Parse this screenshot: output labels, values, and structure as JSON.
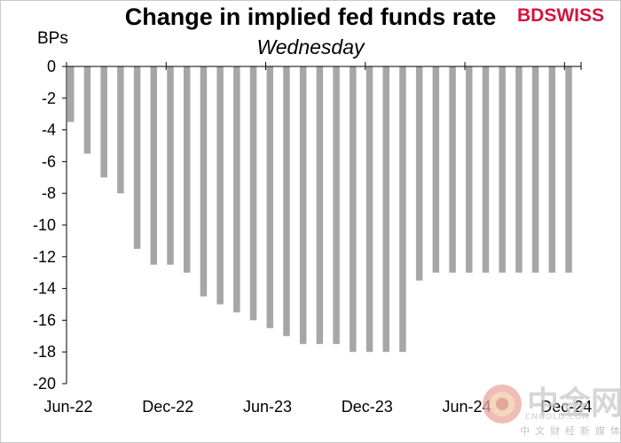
{
  "chart_data": {
    "type": "bar",
    "title": "Change in implied fed funds rate",
    "subtitle": "Wednesday",
    "ylabel": "BPs",
    "xlabel": "",
    "ylim": [
      -20,
      0
    ],
    "yticks": [
      0,
      -2,
      -4,
      -6,
      -8,
      -10,
      -12,
      -14,
      -16,
      -18,
      -20
    ],
    "xtick_labels": [
      "Jun-22",
      "Dec-22",
      "Jun-23",
      "Dec-23",
      "Jun-24",
      "Dec-24"
    ],
    "grid": false,
    "bar_color": "#a6a6a6",
    "values": [
      -3.5,
      -5.5,
      -7,
      -8,
      -11.5,
      -12.5,
      -12.5,
      -13,
      -14.5,
      -15,
      -15.5,
      -16,
      -16.5,
      -17,
      -17.5,
      -17.5,
      -17.5,
      -18,
      -18,
      -18,
      -18,
      -13.5,
      -13,
      -13,
      -13,
      -13,
      -13,
      -13,
      -13,
      -13,
      -13
    ]
  },
  "brand": {
    "logo": "BDSWISS",
    "watermark": "中金网",
    "watermark_url": "CNGOLD.COM",
    "watermark_tagline": "中文财经新媒体"
  }
}
